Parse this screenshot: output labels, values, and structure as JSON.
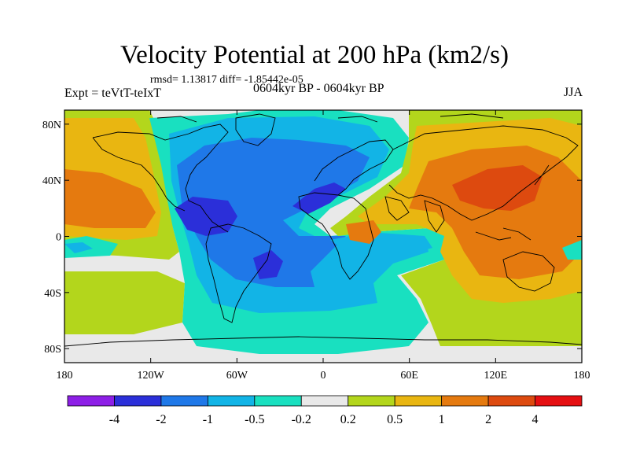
{
  "title": "Velocity Potential at 200 hPa (km2/s)",
  "stats": "rmsd= 1.13817 diff= -1.85442e-05",
  "experiment": "Expt = teVtT-teIxT",
  "period": "0604kyr BP - 0604kyr BP",
  "season": "JJA",
  "axes": {
    "x_ticks": [
      "180",
      "120W",
      "60W",
      "0",
      "60E",
      "120E",
      "180"
    ],
    "y_ticks": [
      "80N",
      "40N",
      "0",
      "40S",
      "80S"
    ],
    "lon_range": [
      -180,
      180
    ],
    "lat_range": [
      -90,
      90
    ]
  },
  "colorbar": {
    "labels": [
      "-4",
      "-2",
      "-1",
      "-0.5",
      "-0.2",
      "0.2",
      "0.5",
      "1",
      "2",
      "4"
    ],
    "colors": [
      "#8d1fe6",
      "#2b2fd9",
      "#1f78e8",
      "#12b4e6",
      "#19e0c0",
      "#e9e9e9",
      "#b3d61c",
      "#e9b611",
      "#e57a0f",
      "#dd4a0f",
      "#e50f12"
    ]
  },
  "map_colors": {
    "ocean_missing": "#e9e9e9",
    "coast": "#000000"
  }
}
